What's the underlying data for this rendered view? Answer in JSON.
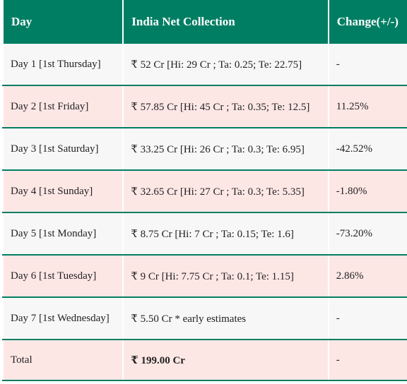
{
  "table": {
    "headers": [
      "Day",
      "India Net Collection",
      "Change(+/-)"
    ],
    "rows": [
      {
        "day": "Day 1 [1st Thursday]",
        "collection": "₹ 52 Cr [Hi: 29 Cr ; Ta: 0.25; Te: 22.75]",
        "change": "-"
      },
      {
        "day": "Day 2 [1st Friday]",
        "collection": "₹ 57.85 Cr [Hi: 45 Cr ; Ta: 0.35; Te: 12.5]",
        "change": "11.25%"
      },
      {
        "day": "Day 3 [1st Saturday]",
        "collection": "₹ 33.25 Cr [Hi: 26 Cr ; Ta: 0.3; Te: 6.95]",
        "change": "-42.52%"
      },
      {
        "day": "Day 4 [1st Sunday]",
        "collection": "₹ 32.65 Cr [Hi: 27 Cr ; Ta: 0.3; Te: 5.35]",
        "change": "-1.80%"
      },
      {
        "day": "Day 5 [1st Monday]",
        "collection": "₹ 8.75 Cr [Hi: 7 Cr ; Ta: 0.15; Te: 1.6]",
        "change": "-73.20%"
      },
      {
        "day": "Day 6 [1st Tuesday]",
        "collection": "₹ 9 Cr [Hi: 7.75 Cr ; Ta: 0.1; Te: 1.15]",
        "change": "2.86%"
      },
      {
        "day": "Day 7 [1st Wednesday]",
        "collection": "₹ 5.50 Cr * early estimates",
        "change": "-"
      },
      {
        "day": "Total",
        "collection": "₹ 199.00 Cr",
        "change": "-"
      }
    ]
  },
  "colors": {
    "header_bg": "#007e63",
    "row_odd_bg": "#f7f7f7",
    "row_even_bg": "#fde7e5",
    "row_border": "#007e63"
  }
}
